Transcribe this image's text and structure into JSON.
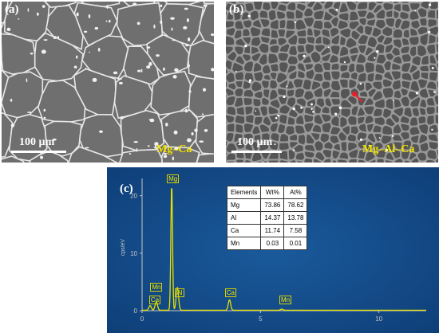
{
  "panels": {
    "a": {
      "label": "(a)",
      "scale_text": "100 µm",
      "alloy": "Mg–Ca"
    },
    "b": {
      "label": "(b)",
      "scale_text": "100 µm",
      "alloy": "Mg–Al–Ca"
    },
    "c": {
      "label": "(c)"
    }
  },
  "chart_data": {
    "type": "line",
    "ylabel": "cps/eV",
    "xlim": [
      0,
      12
    ],
    "ylim": [
      0,
      23
    ],
    "x_ticks": [
      0,
      5,
      10
    ],
    "y_ticks": [
      0,
      10,
      20
    ],
    "peaks": [
      {
        "name": "Mn",
        "x": 0.6,
        "y": 1.5
      },
      {
        "name": "Ca",
        "x": 0.34,
        "y": 0.8
      },
      {
        "name": "Mg",
        "x": 1.25,
        "y": 22.0
      },
      {
        "name": "Al",
        "x": 1.49,
        "y": 4.0
      },
      {
        "name": "Ca",
        "x": 3.69,
        "y": 1.8
      },
      {
        "name": "Mn",
        "x": 5.9,
        "y": 0.2
      }
    ],
    "peak_labels": [
      {
        "text": "Mg",
        "x": 1.25,
        "y": 22.5
      },
      {
        "text": "Mn",
        "x": 0.55,
        "y": 3.6
      },
      {
        "text": "Ca",
        "x": 0.5,
        "y": 1.4
      },
      {
        "text": "Al",
        "x": 1.6,
        "y": 2.7
      },
      {
        "text": "Ca",
        "x": 3.7,
        "y": 2.7
      },
      {
        "text": "Mn",
        "x": 6.0,
        "y": 1.4
      }
    ],
    "table": {
      "headers": [
        "Elements",
        "Wt%",
        "At%"
      ],
      "rows": [
        [
          "Mg",
          "73.86",
          "78.62"
        ],
        [
          "Al",
          "14.37",
          "13.78"
        ],
        [
          "Ca",
          "11.74",
          "7.58"
        ],
        [
          "Mn",
          "0.03",
          "0.01"
        ]
      ]
    },
    "colors": {
      "background": "#0d3b73",
      "spectrum": "#e8e000",
      "axis": "#c7c7c7"
    }
  }
}
